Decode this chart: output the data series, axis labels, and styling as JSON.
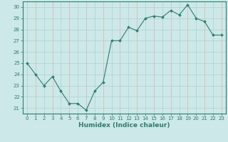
{
  "x": [
    0,
    1,
    2,
    3,
    4,
    5,
    6,
    7,
    8,
    9,
    10,
    11,
    12,
    13,
    14,
    15,
    16,
    17,
    18,
    19,
    20,
    21,
    22,
    23
  ],
  "y": [
    25.0,
    24.0,
    23.0,
    23.8,
    22.5,
    21.4,
    21.4,
    20.8,
    22.5,
    23.3,
    27.0,
    27.0,
    28.2,
    27.9,
    29.0,
    29.2,
    29.1,
    29.7,
    29.3,
    30.2,
    29.0,
    28.7,
    27.5,
    27.5
  ],
  "line_color": "#2d7d6e",
  "marker": "D",
  "marker_size": 2.0,
  "bg_color": "#cce8e8",
  "grid_color": "#b0d0d0",
  "pink_grid_color": "#e0b0b0",
  "xlabel": "Humidex (Indice chaleur)",
  "xlabel_color": "#2d7d6e",
  "ylim": [
    20.5,
    30.5
  ],
  "xlim": [
    -0.5,
    23.5
  ],
  "yticks": [
    21,
    22,
    23,
    24,
    25,
    26,
    27,
    28,
    29,
    30
  ],
  "xticks": [
    0,
    1,
    2,
    3,
    4,
    5,
    6,
    7,
    8,
    9,
    10,
    11,
    12,
    13,
    14,
    15,
    16,
    17,
    18,
    19,
    20,
    21,
    22,
    23
  ],
  "tick_color": "#2d7d6e",
  "spine_color": "#2d7d6e",
  "tick_fontsize": 5.0,
  "xlabel_fontsize": 6.5
}
